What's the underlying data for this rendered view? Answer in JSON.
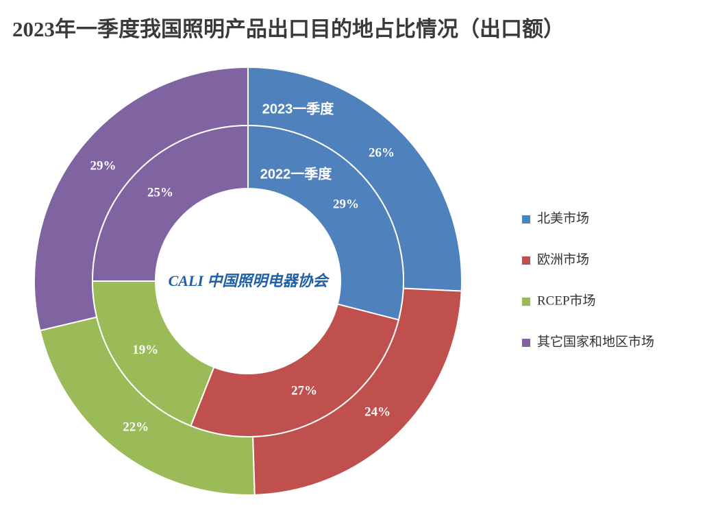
{
  "chart_data": {
    "type": "donut",
    "title": "2023年一季度我国照明产品出口目的地占比情况（出口额）",
    "categories": [
      "北美市场",
      "欧洲市场",
      "RCEP市场",
      "其它国家和地区市场"
    ],
    "colors": [
      "#4f81bd",
      "#c0504d",
      "#9bbb59",
      "#8064a2"
    ],
    "series": [
      {
        "name": "2023一季度",
        "values": [
          26,
          24,
          22,
          29
        ],
        "value_labels": [
          "26%",
          "24%",
          "22%",
          "29%"
        ]
      },
      {
        "name": "2022一季度",
        "values": [
          29,
          27,
          19,
          25
        ],
        "value_labels": [
          "29%",
          "27%",
          "19%",
          "25%"
        ]
      }
    ],
    "legend": "right",
    "logo": "CALI 中国照明电器协会"
  }
}
